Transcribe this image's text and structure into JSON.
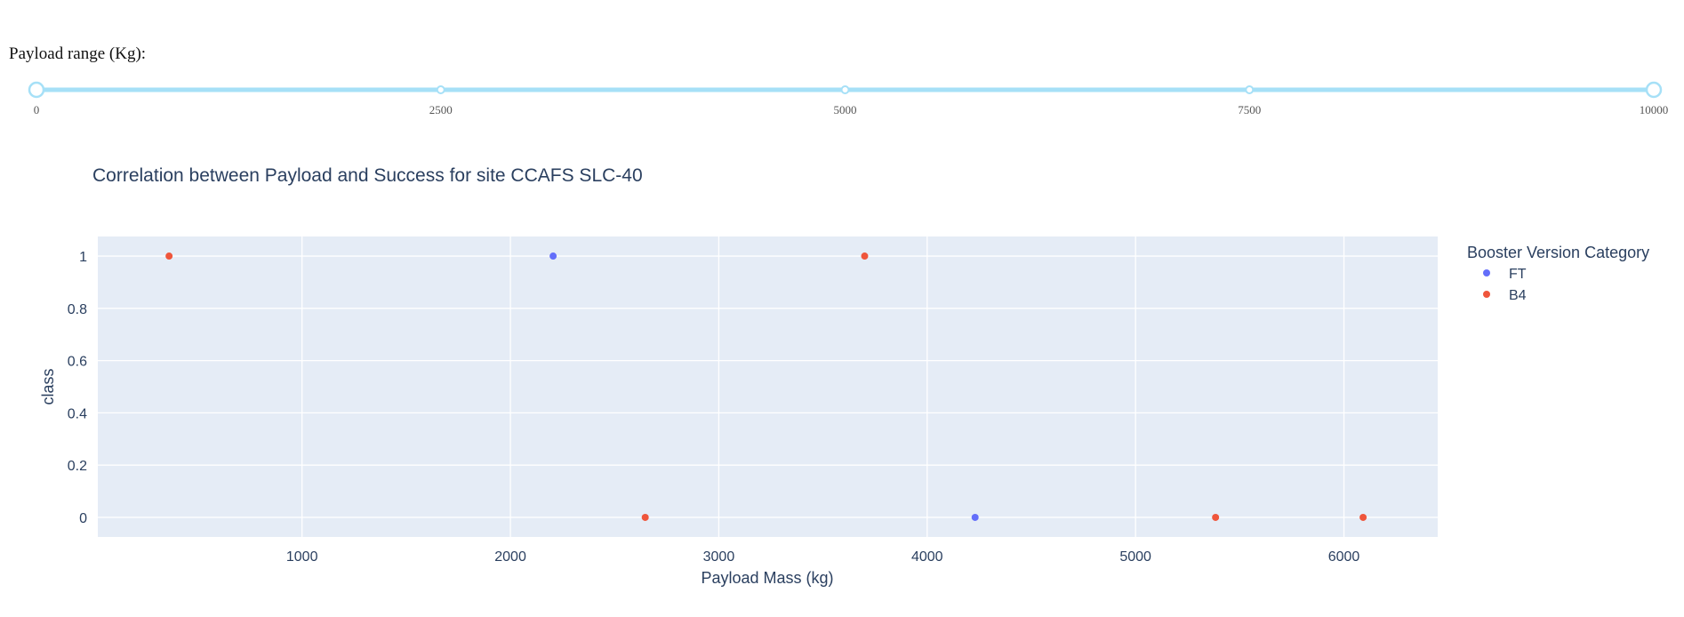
{
  "slider": {
    "label": "Payload range (Kg):",
    "min": 0,
    "max": 10000,
    "selected": [
      0,
      10000
    ],
    "marks": [
      {
        "value": 0,
        "label": "0"
      },
      {
        "value": 2500,
        "label": "2500"
      },
      {
        "value": 5000,
        "label": "5000"
      },
      {
        "value": 7500,
        "label": "7500"
      },
      {
        "value": 10000,
        "label": "10000"
      }
    ],
    "color": "#a6e0f7"
  },
  "chart_data": {
    "type": "scatter",
    "title": "Correlation between Payload and Success for site CCAFS SLC-40",
    "xlabel": "Payload Mass (kg)",
    "ylabel": "class",
    "xlim": [
      20,
      6450
    ],
    "ylim": [
      -0.075,
      1.075
    ],
    "xticks": [
      1000,
      2000,
      3000,
      4000,
      5000,
      6000
    ],
    "xtick_labels": [
      "1000",
      "2000",
      "3000",
      "4000",
      "5000",
      "6000"
    ],
    "yticks": [
      0,
      0.2,
      0.4,
      0.6,
      0.8,
      1
    ],
    "ytick_labels": [
      "0",
      "0.2",
      "0.4",
      "0.6",
      "0.8",
      "1"
    ],
    "grid": true,
    "legend_title": "Booster Version Category",
    "legend_position": "right",
    "series": [
      {
        "name": "FT",
        "color": "#636efa",
        "points": [
          [
            2205,
            1
          ],
          [
            4230,
            0
          ]
        ]
      },
      {
        "name": "B4",
        "color": "#ef553b",
        "points": [
          [
            362,
            1
          ],
          [
            2647,
            0
          ],
          [
            3700,
            1
          ],
          [
            5384,
            0
          ],
          [
            6092,
            0
          ]
        ]
      }
    ],
    "plot_bg": "#e5ecf6",
    "text_color": "#2a3f5f"
  }
}
